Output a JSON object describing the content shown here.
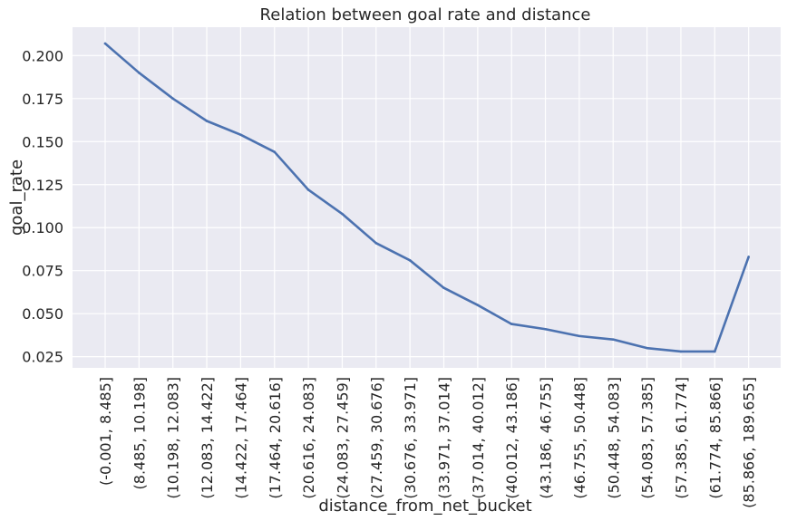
{
  "chart_data": {
    "type": "line",
    "title": "Relation between goal rate and distance",
    "xlabel": "distance_from_net_bucket",
    "ylabel": "goal_rate",
    "categories": [
      "(-0.001, 8.485]",
      "(8.485, 10.198]",
      "(10.198, 12.083]",
      "(12.083, 14.422]",
      "(14.422, 17.464]",
      "(17.464, 20.616]",
      "(20.616, 24.083]",
      "(24.083, 27.459]",
      "(27.459, 30.676]",
      "(30.676, 33.971]",
      "(33.971, 37.014]",
      "(37.014, 40.012]",
      "(40.012, 43.186]",
      "(43.186, 46.755]",
      "(46.755, 50.448]",
      "(50.448, 54.083]",
      "(54.083, 57.385]",
      "(57.385, 61.774]",
      "(61.774, 85.866]",
      "(85.866, 189.655]"
    ],
    "values": [
      0.207,
      0.19,
      0.175,
      0.162,
      0.154,
      0.144,
      0.122,
      0.108,
      0.091,
      0.081,
      0.065,
      0.055,
      0.044,
      0.041,
      0.037,
      0.035,
      0.03,
      0.028,
      0.028,
      0.083
    ],
    "yticks": [
      "0.025",
      "0.050",
      "0.075",
      "0.100",
      "0.125",
      "0.150",
      "0.175",
      "0.200"
    ],
    "ylim": [
      0.0185,
      0.2165
    ],
    "grid": true,
    "line_color": "#4c72b0",
    "background_color": "#eaeaf2"
  }
}
